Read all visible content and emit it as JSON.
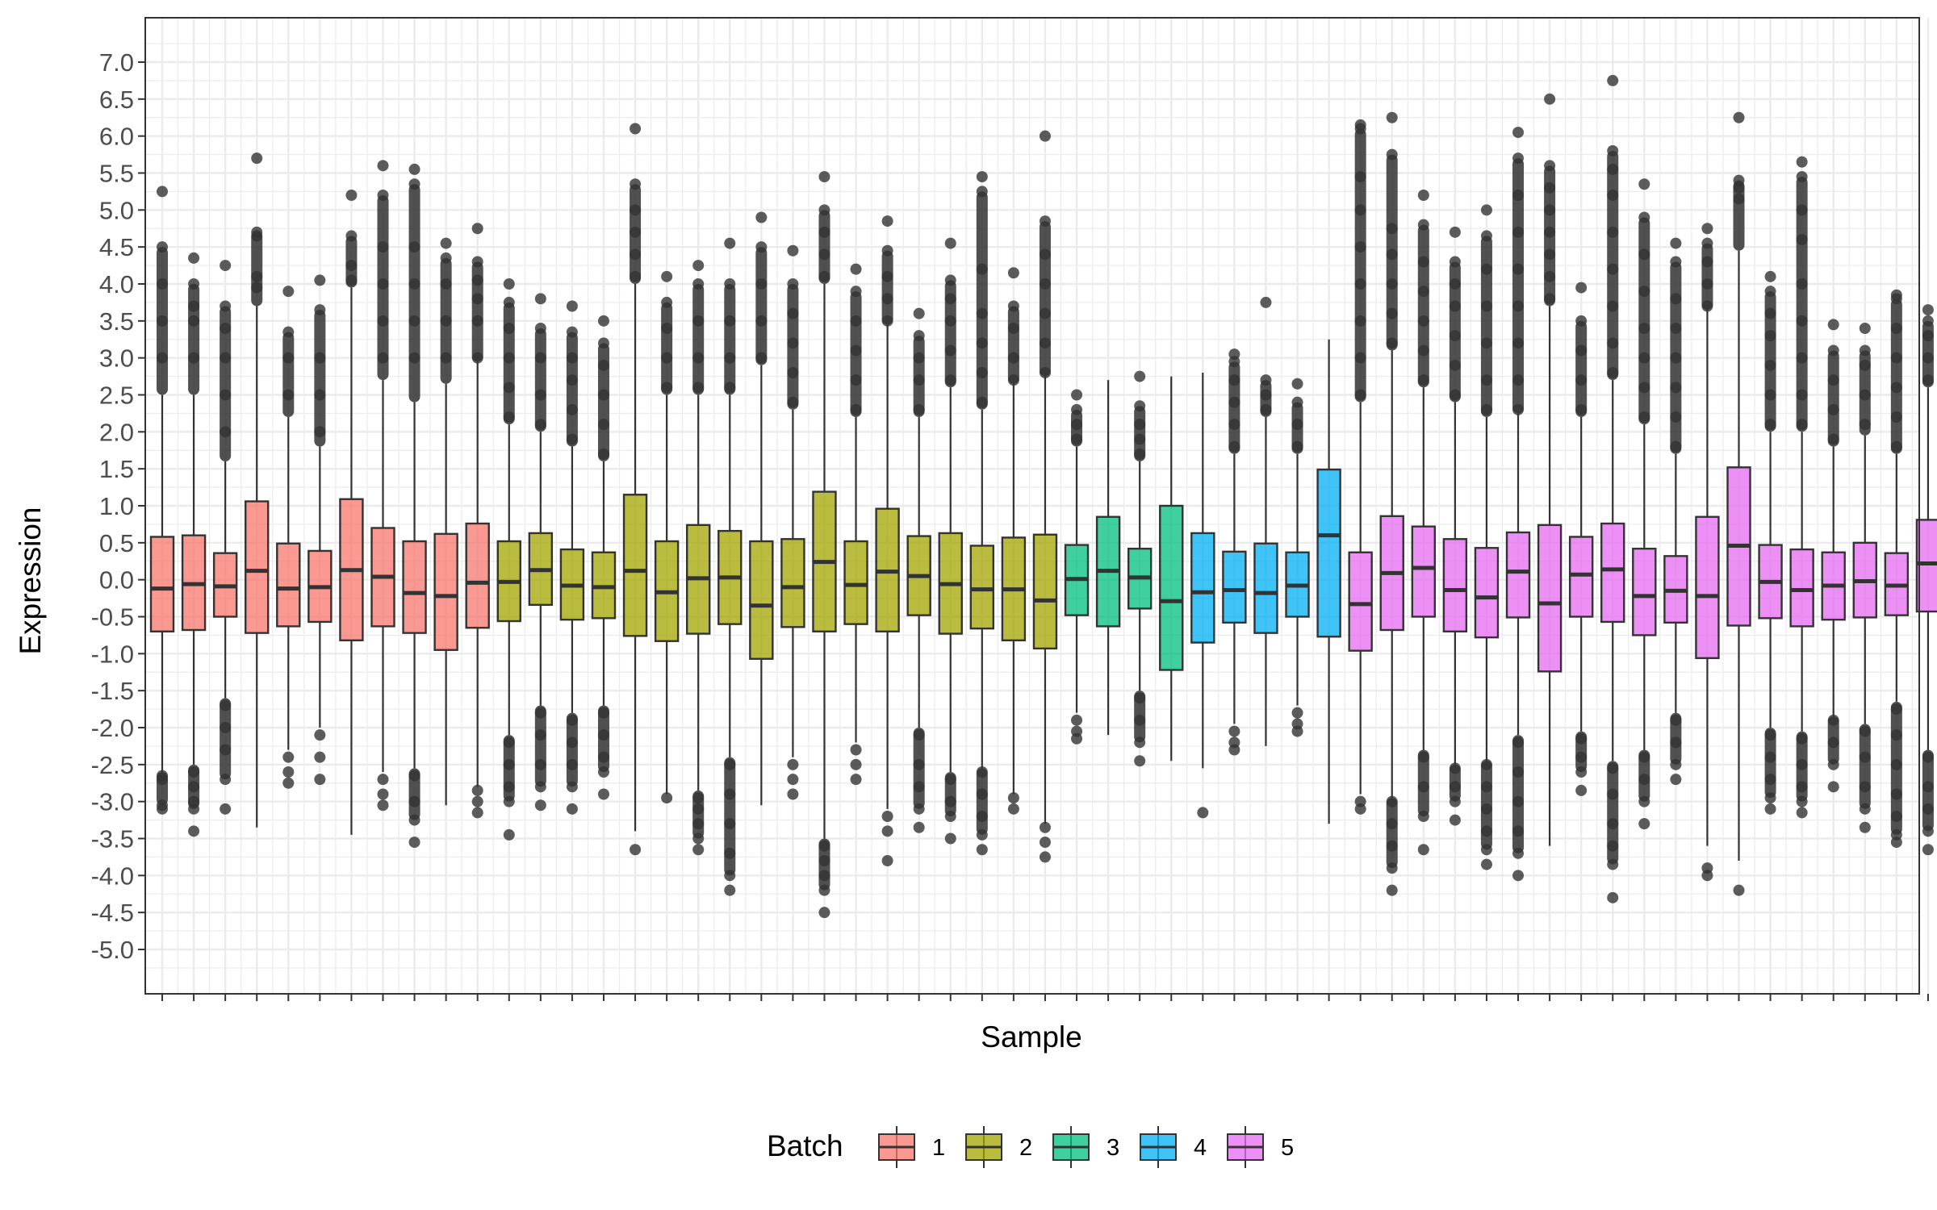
{
  "chart_data": {
    "type": "boxplot",
    "title": "",
    "xlabel": "Sample",
    "ylabel": "Expression",
    "ylim": [
      -5.6,
      7.6
    ],
    "y_ticks": [
      "7.0",
      "6.5",
      "6.0",
      "5.5",
      "5.0",
      "4.5",
      "4.0",
      "3.5",
      "3.0",
      "2.5",
      "2.0",
      "1.5",
      "1.0",
      "0.5",
      "0.0",
      "-0.5",
      "-1.0",
      "-1.5",
      "-2.0",
      "-2.5",
      "-3.0",
      "-3.5",
      "-4.0",
      "-4.5",
      "-5.0"
    ],
    "grid": true,
    "legend": {
      "title": "Batch",
      "position": "bottom",
      "entries": [
        {
          "label": "1",
          "color": "#F8766D"
        },
        {
          "label": "2",
          "color": "#A3A500"
        },
        {
          "label": "3",
          "color": "#00BF7D"
        },
        {
          "label": "4",
          "color": "#00B0F6"
        },
        {
          "label": "5",
          "color": "#E76BF3"
        }
      ]
    },
    "boxes": [
      {
        "batch": 1,
        "q1": -0.7,
        "median": -0.12,
        "q3": 0.58,
        "wlo": -2.6,
        "whi": 2.5,
        "olo": [
          -2.65,
          -2.7,
          -3.05,
          -3.1
        ],
        "ohi": [
          3.0,
          3.5,
          4.0,
          4.5,
          5.25
        ]
      },
      {
        "batch": 1,
        "q1": -0.68,
        "median": -0.06,
        "q3": 0.6,
        "wlo": -2.5,
        "whi": 2.5,
        "olo": [
          -2.6,
          -2.8,
          -3.0,
          -3.1,
          -3.4
        ],
        "ohi": [
          3.0,
          3.5,
          3.7,
          4.0,
          4.35
        ]
      },
      {
        "batch": 1,
        "q1": -0.5,
        "median": -0.09,
        "q3": 0.36,
        "wlo": -1.6,
        "whi": 1.6,
        "olo": [
          -1.7,
          -2.0,
          -2.3,
          -2.7,
          -3.1
        ],
        "ohi": [
          2.0,
          2.5,
          3.0,
          3.4,
          3.7,
          4.25
        ]
      },
      {
        "batch": 1,
        "q1": -0.72,
        "median": 0.12,
        "q3": 1.06,
        "wlo": -3.35,
        "whi": 3.7,
        "olo": [],
        "ohi": [
          3.95,
          4.1,
          4.65,
          4.7,
          5.7
        ]
      },
      {
        "batch": 1,
        "q1": -0.63,
        "median": -0.12,
        "q3": 0.49,
        "wlo": -2.3,
        "whi": 2.2,
        "olo": [
          -2.4,
          -2.6,
          -2.75
        ],
        "ohi": [
          2.5,
          3.0,
          3.35,
          3.9
        ]
      },
      {
        "batch": 1,
        "q1": -0.57,
        "median": -0.1,
        "q3": 0.39,
        "wlo": -2.0,
        "whi": 1.8,
        "olo": [
          -2.1,
          -2.4,
          -2.7
        ],
        "ohi": [
          2.0,
          2.5,
          3.0,
          3.65,
          4.05
        ]
      },
      {
        "batch": 1,
        "q1": -0.82,
        "median": 0.13,
        "q3": 1.09,
        "wlo": -3.45,
        "whi": 3.95,
        "olo": [],
        "ohi": [
          4.05,
          4.25,
          4.65,
          5.2
        ]
      },
      {
        "batch": 1,
        "q1": -0.63,
        "median": 0.04,
        "q3": 0.7,
        "wlo": -2.6,
        "whi": 2.7,
        "olo": [
          -2.7,
          -2.9,
          -3.05
        ],
        "ohi": [
          3.0,
          3.5,
          4.0,
          4.5,
          5.2,
          5.6
        ]
      },
      {
        "batch": 1,
        "q1": -0.72,
        "median": -0.18,
        "q3": 0.52,
        "wlo": -2.55,
        "whi": 2.4,
        "olo": [
          -2.65,
          -3.0,
          -3.25,
          -3.55
        ],
        "ohi": [
          3.0,
          3.5,
          4.0,
          4.5,
          5.35,
          5.55
        ]
      },
      {
        "batch": 1,
        "q1": -0.95,
        "median": -0.22,
        "q3": 0.62,
        "wlo": -3.05,
        "whi": 2.65,
        "olo": [],
        "ohi": [
          3.0,
          3.5,
          4.0,
          4.35,
          4.55
        ]
      },
      {
        "batch": 1,
        "q1": -0.65,
        "median": -0.04,
        "q3": 0.76,
        "wlo": -2.8,
        "whi": 2.95,
        "olo": [
          -2.85,
          -3.0,
          -3.15
        ],
        "ohi": [
          3.0,
          3.5,
          3.8,
          4.05,
          4.3,
          4.75
        ]
      },
      {
        "batch": 2,
        "q1": -0.56,
        "median": -0.03,
        "q3": 0.52,
        "wlo": -2.1,
        "whi": 2.1,
        "olo": [
          -2.2,
          -2.5,
          -2.8,
          -3.0,
          -3.45
        ],
        "ohi": [
          2.2,
          2.6,
          3.0,
          3.4,
          3.75,
          4.0
        ]
      },
      {
        "batch": 2,
        "q1": -0.34,
        "median": 0.13,
        "q3": 0.63,
        "wlo": -1.7,
        "whi": 2.0,
        "olo": [
          -1.8,
          -2.1,
          -2.5,
          -2.8,
          -3.05
        ],
        "ohi": [
          2.1,
          2.5,
          3.0,
          3.4,
          3.8
        ]
      },
      {
        "batch": 2,
        "q1": -0.54,
        "median": -0.08,
        "q3": 0.41,
        "wlo": -1.8,
        "whi": 1.8,
        "olo": [
          -1.9,
          -2.2,
          -2.5,
          -2.8,
          -3.1
        ],
        "ohi": [
          1.9,
          2.3,
          2.7,
          3.0,
          3.35,
          3.7
        ]
      },
      {
        "batch": 2,
        "q1": -0.52,
        "median": -0.1,
        "q3": 0.37,
        "wlo": -1.7,
        "whi": 1.6,
        "olo": [
          -1.8,
          -2.1,
          -2.4,
          -2.6,
          -2.9
        ],
        "ohi": [
          1.7,
          2.1,
          2.5,
          2.9,
          3.2,
          3.5
        ]
      },
      {
        "batch": 2,
        "q1": -0.76,
        "median": 0.12,
        "q3": 1.15,
        "wlo": -3.4,
        "whi": 4.0,
        "olo": [
          -3.65
        ],
        "ohi": [
          4.1,
          4.4,
          4.7,
          5.0,
          5.35,
          6.1
        ]
      },
      {
        "batch": 2,
        "q1": -0.83,
        "median": -0.17,
        "q3": 0.52,
        "wlo": -2.9,
        "whi": 2.5,
        "olo": [
          -2.95
        ],
        "ohi": [
          2.6,
          3.0,
          3.4,
          3.75,
          4.1
        ]
      },
      {
        "batch": 2,
        "q1": -0.73,
        "median": 0.02,
        "q3": 0.74,
        "wlo": -2.85,
        "whi": 2.5,
        "olo": [
          -2.95,
          -3.1,
          -3.3,
          -3.5,
          -3.65
        ],
        "ohi": [
          2.6,
          3.0,
          3.5,
          4.0,
          4.25
        ]
      },
      {
        "batch": 2,
        "q1": -0.6,
        "median": 0.03,
        "q3": 0.66,
        "wlo": -2.4,
        "whi": 2.5,
        "olo": [
          -2.5,
          -2.9,
          -3.3,
          -3.7,
          -4.0,
          -4.2
        ],
        "ohi": [
          2.6,
          3.0,
          3.5,
          4.0,
          4.55
        ]
      },
      {
        "batch": 2,
        "q1": -1.07,
        "median": -0.35,
        "q3": 0.52,
        "wlo": -3.05,
        "whi": 2.9,
        "olo": [],
        "ohi": [
          3.0,
          3.5,
          4.0,
          4.5,
          4.9
        ]
      },
      {
        "batch": 2,
        "q1": -0.64,
        "median": -0.1,
        "q3": 0.55,
        "wlo": -2.4,
        "whi": 2.3,
        "olo": [
          -2.5,
          -2.7,
          -2.9
        ],
        "ohi": [
          2.4,
          2.8,
          3.2,
          3.6,
          4.0,
          4.45
        ]
      },
      {
        "batch": 2,
        "q1": -0.7,
        "median": 0.24,
        "q3": 1.19,
        "wlo": -3.5,
        "whi": 4.0,
        "olo": [
          -3.6,
          -3.8,
          -4.0,
          -4.2,
          -4.5
        ],
        "ohi": [
          4.1,
          4.4,
          4.7,
          5.0,
          5.45
        ]
      },
      {
        "batch": 2,
        "q1": -0.6,
        "median": -0.07,
        "q3": 0.52,
        "wlo": -2.2,
        "whi": 2.2,
        "olo": [
          -2.3,
          -2.5,
          -2.7
        ],
        "ohi": [
          2.3,
          2.7,
          3.1,
          3.5,
          3.9,
          4.2
        ]
      },
      {
        "batch": 2,
        "q1": -0.7,
        "median": 0.11,
        "q3": 0.96,
        "wlo": -3.1,
        "whi": 3.45,
        "olo": [
          -3.2,
          -3.4,
          -3.8
        ],
        "ohi": [
          3.5,
          3.8,
          4.1,
          4.45,
          4.85
        ]
      },
      {
        "batch": 2,
        "q1": -0.48,
        "median": 0.05,
        "q3": 0.59,
        "wlo": -2.0,
        "whi": 2.2,
        "olo": [
          -2.1,
          -2.5,
          -2.8,
          -3.1,
          -3.35
        ],
        "ohi": [
          2.3,
          2.7,
          3.0,
          3.3,
          3.6
        ]
      },
      {
        "batch": 2,
        "q1": -0.73,
        "median": -0.06,
        "q3": 0.63,
        "wlo": -2.6,
        "whi": 2.6,
        "olo": [
          -2.7,
          -3.0,
          -3.2,
          -3.5
        ],
        "ohi": [
          2.7,
          3.1,
          3.5,
          3.8,
          4.05,
          4.55
        ]
      },
      {
        "batch": 2,
        "q1": -0.66,
        "median": -0.13,
        "q3": 0.46,
        "wlo": -2.55,
        "whi": 2.3,
        "olo": [
          -2.6,
          -2.9,
          -3.2,
          -3.45,
          -3.65
        ],
        "ohi": [
          2.4,
          2.8,
          3.2,
          3.6,
          4.2,
          5.25,
          5.45
        ]
      },
      {
        "batch": 2,
        "q1": -0.82,
        "median": -0.13,
        "q3": 0.57,
        "wlo": -2.9,
        "whi": 2.65,
        "olo": [
          -2.95,
          -3.1
        ],
        "ohi": [
          2.7,
          3.0,
          3.4,
          3.7,
          4.15
        ]
      },
      {
        "batch": 2,
        "q1": -0.93,
        "median": -0.28,
        "q3": 0.61,
        "wlo": -3.3,
        "whi": 2.75,
        "olo": [
          -3.35,
          -3.55,
          -3.75
        ],
        "ohi": [
          2.8,
          3.2,
          3.6,
          4.0,
          4.4,
          4.85,
          6.0
        ]
      },
      {
        "batch": 3,
        "q1": -0.48,
        "median": 0.01,
        "q3": 0.47,
        "wlo": -1.8,
        "whi": 1.8,
        "olo": [
          -1.9,
          -2.05,
          -2.15
        ],
        "ohi": [
          1.9,
          2.1,
          2.3,
          2.5
        ]
      },
      {
        "batch": 3,
        "q1": -0.63,
        "median": 0.12,
        "q3": 0.85,
        "wlo": -2.1,
        "whi": 2.7,
        "olo": [],
        "ohi": []
      },
      {
        "batch": 3,
        "q1": -0.39,
        "median": 0.03,
        "q3": 0.42,
        "wlo": -1.5,
        "whi": 1.6,
        "olo": [
          -1.6,
          -1.9,
          -2.2,
          -2.45
        ],
        "ohi": [
          1.7,
          1.9,
          2.1,
          2.35,
          2.75
        ]
      },
      {
        "batch": 3,
        "q1": -1.22,
        "median": -0.29,
        "q3": 1.0,
        "wlo": -2.45,
        "whi": 2.75,
        "olo": [],
        "ohi": []
      },
      {
        "batch": 4,
        "q1": -0.85,
        "median": -0.17,
        "q3": 0.63,
        "wlo": -2.55,
        "whi": 2.8,
        "olo": [
          -3.15
        ],
        "ohi": []
      },
      {
        "batch": 4,
        "q1": -0.58,
        "median": -0.14,
        "q3": 0.38,
        "wlo": -1.95,
        "whi": 1.7,
        "olo": [
          -2.05,
          -2.2,
          -2.3
        ],
        "ohi": [
          1.8,
          2.1,
          2.4,
          2.7,
          2.95,
          3.05
        ]
      },
      {
        "batch": 4,
        "q1": -0.72,
        "median": -0.18,
        "q3": 0.49,
        "wlo": -2.25,
        "whi": 2.2,
        "olo": [],
        "ohi": [
          2.3,
          2.5,
          2.7,
          3.75
        ]
      },
      {
        "batch": 4,
        "q1": -0.5,
        "median": -0.08,
        "q3": 0.37,
        "wlo": -1.7,
        "whi": 1.7,
        "olo": [
          -1.8,
          -1.95,
          -2.05
        ],
        "ohi": [
          1.8,
          2.1,
          2.4,
          2.65
        ]
      },
      {
        "batch": 4,
        "q1": -0.77,
        "median": 0.6,
        "q3": 1.49,
        "wlo": -3.3,
        "whi": 3.25,
        "olo": [],
        "ohi": []
      },
      {
        "batch": 5,
        "q1": -0.96,
        "median": -0.33,
        "q3": 0.37,
        "wlo": -2.9,
        "whi": 2.4,
        "olo": [
          -3.0,
          -3.1
        ],
        "ohi": [
          2.5,
          3.0,
          3.5,
          4.0,
          4.5,
          5.0,
          5.45,
          6.1,
          6.15
        ]
      },
      {
        "batch": 5,
        "q1": -0.68,
        "median": 0.09,
        "q3": 0.86,
        "wlo": -2.95,
        "whi": 3.1,
        "olo": [
          -3.0,
          -3.3,
          -3.6,
          -3.9,
          -4.2
        ],
        "ohi": [
          3.2,
          3.6,
          4.0,
          4.4,
          4.75,
          5.75,
          6.25
        ]
      },
      {
        "batch": 5,
        "q1": -0.5,
        "median": 0.16,
        "q3": 0.72,
        "wlo": -2.3,
        "whi": 2.6,
        "olo": [
          -2.4,
          -2.8,
          -3.2,
          -3.65
        ],
        "ohi": [
          2.7,
          3.1,
          3.5,
          3.9,
          4.3,
          4.8,
          5.2
        ]
      },
      {
        "batch": 5,
        "q1": -0.7,
        "median": -0.14,
        "q3": 0.55,
        "wlo": -2.5,
        "whi": 2.4,
        "olo": [
          -2.55,
          -2.8,
          -3.0,
          -3.25
        ],
        "ohi": [
          2.5,
          2.9,
          3.3,
          3.7,
          4.0,
          4.3,
          4.7
        ]
      },
      {
        "batch": 5,
        "q1": -0.78,
        "median": -0.24,
        "q3": 0.43,
        "wlo": -2.45,
        "whi": 2.2,
        "olo": [
          -2.5,
          -2.8,
          -3.1,
          -3.4,
          -3.65,
          -3.85
        ],
        "ohi": [
          2.3,
          2.7,
          3.2,
          3.7,
          4.2,
          4.65,
          5.0
        ]
      },
      {
        "batch": 5,
        "q1": -0.51,
        "median": 0.11,
        "q3": 0.64,
        "wlo": -2.1,
        "whi": 2.25,
        "olo": [
          -2.2,
          -2.6,
          -3.0,
          -3.4,
          -3.7,
          -4.0
        ],
        "ohi": [
          2.3,
          2.7,
          3.2,
          3.7,
          4.2,
          4.7,
          5.2,
          5.7,
          6.05
        ]
      },
      {
        "batch": 5,
        "q1": -1.24,
        "median": -0.32,
        "q3": 0.74,
        "wlo": -3.6,
        "whi": 3.7,
        "olo": [],
        "ohi": [
          3.8,
          4.1,
          4.4,
          4.7,
          5.0,
          5.3,
          5.6,
          6.5
        ]
      },
      {
        "batch": 5,
        "q1": -0.5,
        "median": 0.07,
        "q3": 0.58,
        "wlo": -2.05,
        "whi": 2.2,
        "olo": [
          -2.15,
          -2.4,
          -2.6,
          -2.85
        ],
        "ohi": [
          2.3,
          2.7,
          3.1,
          3.5,
          3.95
        ]
      },
      {
        "batch": 5,
        "q1": -0.57,
        "median": 0.14,
        "q3": 0.76,
        "wlo": -2.45,
        "whi": 2.7,
        "olo": [
          -2.55,
          -2.9,
          -3.3,
          -3.6,
          -3.85,
          -4.3
        ],
        "ohi": [
          2.8,
          3.2,
          3.7,
          4.2,
          4.7,
          5.2,
          5.55,
          5.8,
          6.75
        ]
      },
      {
        "batch": 5,
        "q1": -0.75,
        "median": -0.22,
        "q3": 0.42,
        "wlo": -2.3,
        "whi": 2.1,
        "olo": [
          -2.4,
          -2.7,
          -3.0,
          -3.3
        ],
        "ohi": [
          2.2,
          2.6,
          3.0,
          3.4,
          3.9,
          4.4,
          4.9,
          5.35
        ]
      },
      {
        "batch": 5,
        "q1": -0.58,
        "median": -0.15,
        "q3": 0.32,
        "wlo": -1.8,
        "whi": 1.7,
        "olo": [
          -1.9,
          -2.2,
          -2.5,
          -2.7
        ],
        "ohi": [
          1.8,
          2.2,
          2.6,
          3.0,
          3.4,
          3.8,
          4.3,
          4.55
        ]
      },
      {
        "batch": 5,
        "q1": -1.06,
        "median": -0.22,
        "q3": 0.85,
        "wlo": -3.6,
        "whi": 3.65,
        "olo": [
          -3.9,
          -4.0
        ],
        "ohi": [
          3.7,
          4.0,
          4.3,
          4.55,
          4.75
        ]
      },
      {
        "batch": 5,
        "q1": -0.62,
        "median": 0.46,
        "q3": 1.52,
        "wlo": -3.8,
        "whi": 4.45,
        "olo": [
          -4.2
        ],
        "ohi": [
          5.15,
          5.3,
          5.4,
          6.25
        ]
      },
      {
        "batch": 5,
        "q1": -0.52,
        "median": -0.03,
        "q3": 0.47,
        "wlo": -2.0,
        "whi": 2.0,
        "olo": [
          -2.1,
          -2.4,
          -2.7,
          -2.95,
          -3.1
        ],
        "ohi": [
          2.1,
          2.5,
          2.9,
          3.3,
          3.6,
          3.9,
          4.1
        ]
      },
      {
        "batch": 5,
        "q1": -0.63,
        "median": -0.14,
        "q3": 0.41,
        "wlo": -2.05,
        "whi": 2.0,
        "olo": [
          -2.15,
          -2.5,
          -2.8,
          -3.0,
          -3.15
        ],
        "ohi": [
          2.1,
          2.5,
          3.0,
          3.5,
          4.0,
          4.6,
          5.0,
          5.45,
          5.65
        ]
      },
      {
        "batch": 5,
        "q1": -0.54,
        "median": -0.08,
        "q3": 0.37,
        "wlo": -1.85,
        "whi": 1.8,
        "olo": [
          -1.9,
          -2.2,
          -2.5,
          -2.8
        ],
        "ohi": [
          1.9,
          2.3,
          2.7,
          3.1,
          3.45
        ]
      },
      {
        "batch": 5,
        "q1": -0.51,
        "median": -0.02,
        "q3": 0.5,
        "wlo": -1.95,
        "whi": 1.95,
        "olo": [
          -2.05,
          -2.4,
          -2.8,
          -3.1,
          -3.35
        ],
        "ohi": [
          2.1,
          2.5,
          2.9,
          3.1,
          3.4
        ]
      },
      {
        "batch": 5,
        "q1": -0.48,
        "median": -0.08,
        "q3": 0.36,
        "wlo": -1.65,
        "whi": 1.7,
        "olo": [
          -1.75,
          -2.1,
          -2.5,
          -2.9,
          -3.2,
          -3.45,
          -3.55
        ],
        "ohi": [
          1.8,
          2.2,
          2.6,
          3.0,
          3.4,
          3.8,
          3.85
        ]
      },
      {
        "batch": 5,
        "q1": -0.43,
        "median": 0.22,
        "q3": 0.81,
        "wlo": -2.3,
        "whi": 2.6,
        "olo": [
          -2.4,
          -2.8,
          -3.1,
          -3.4,
          -3.65
        ],
        "ohi": [
          2.7,
          3.0,
          3.3,
          3.5,
          3.65
        ]
      }
    ]
  }
}
